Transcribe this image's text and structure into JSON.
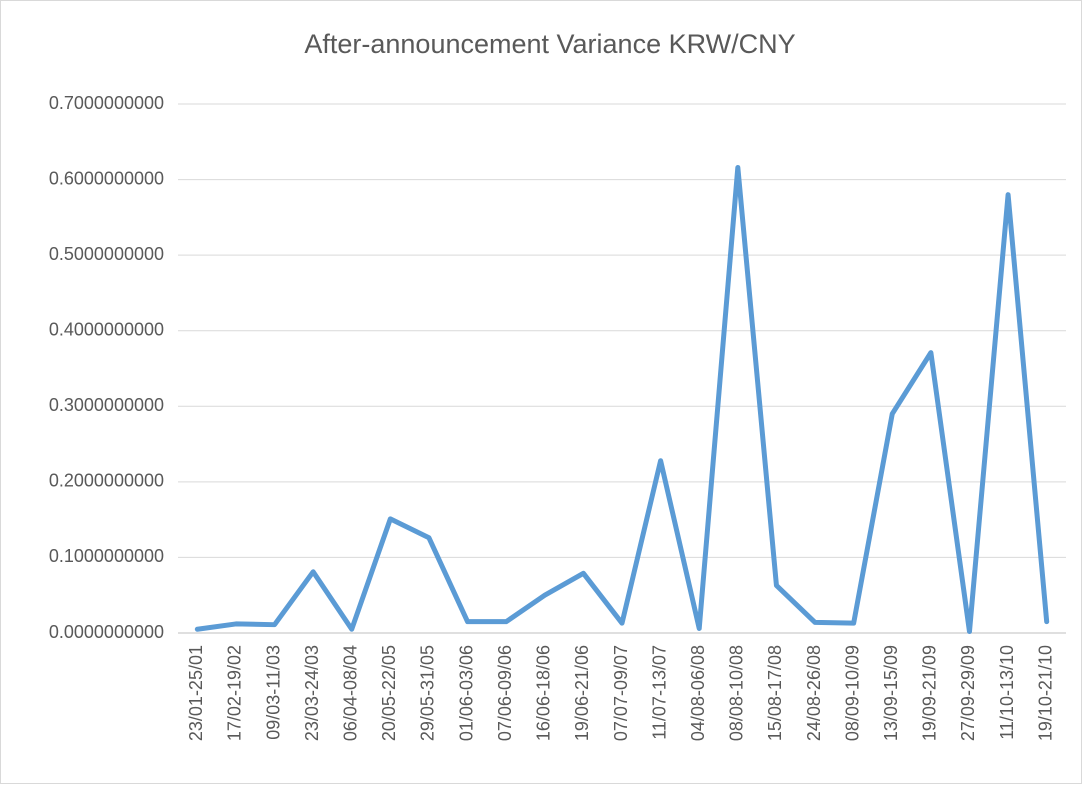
{
  "chart_data": {
    "type": "line",
    "title": "After-announcement Variance KRW/CNY",
    "categories": [
      "23/01-25/01",
      "17/02-19/02",
      "09/03-11/03",
      "23/03-24/03",
      "06/04-08/04",
      "20/05-22/05",
      "29/05-31/05",
      "01/06-03/06",
      "07/06-09/06",
      "16/06-18/06",
      "19/06-21/06",
      "07/07-09/07",
      "11/07-13/07",
      "04/08-06/08",
      "08/08-10/08",
      "15/08-17/08",
      "24/08-26/08",
      "08/09-10/09",
      "13/09-15/09",
      "19/09-21/09",
      "27/09-29/09",
      "11/10-13/10",
      "19/10-21/10"
    ],
    "values": [
      0.005,
      0.012,
      0.011,
      0.081,
      0.005,
      0.151,
      0.126,
      0.015,
      0.015,
      0.05,
      0.079,
      0.013,
      0.228,
      0.006,
      0.616,
      0.063,
      0.014,
      0.013,
      0.29,
      0.371,
      0.002,
      0.58,
      0.015
    ],
    "color": "#5b9bd5",
    "ylim": [
      0,
      0.7
    ],
    "yticks": [
      {
        "value": 0,
        "label": "0.0000000000"
      },
      {
        "value": 0.1,
        "label": "0.1000000000"
      },
      {
        "value": 0.2,
        "label": "0.2000000000"
      },
      {
        "value": 0.3,
        "label": "0.3000000000"
      },
      {
        "value": 0.4,
        "label": "0.4000000000"
      },
      {
        "value": 0.5,
        "label": "0.5000000000"
      },
      {
        "value": 0.6,
        "label": "0.6000000000"
      },
      {
        "value": 0.7,
        "label": "0.7000000000"
      }
    ],
    "grid": true
  }
}
